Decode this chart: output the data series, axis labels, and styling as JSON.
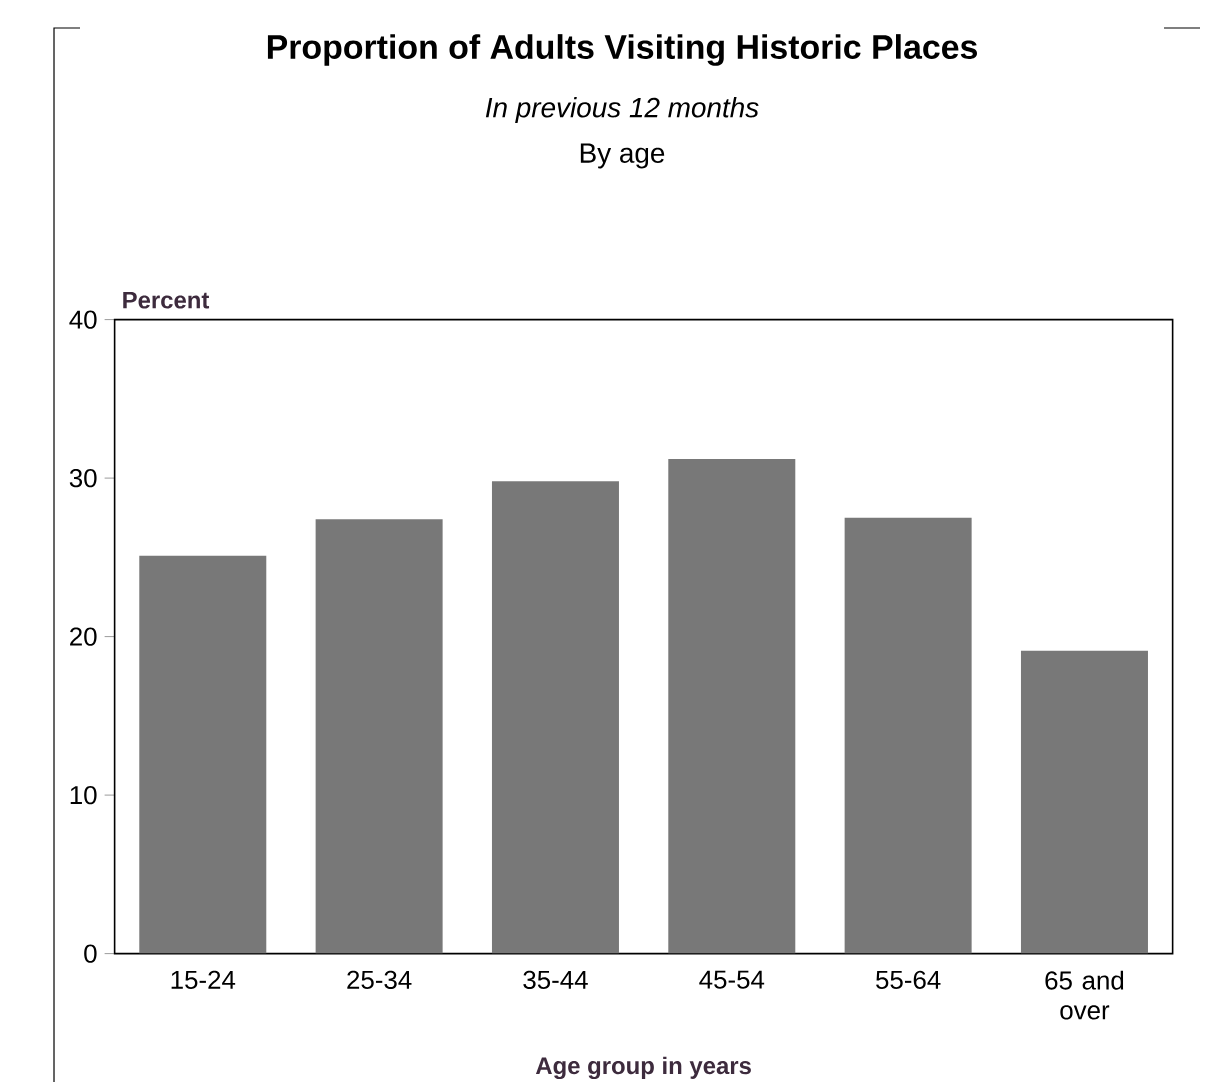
{
  "chart_data": {
    "type": "bar",
    "title": "Proportion of Adults Visiting Historic Places",
    "subtitle": "In previous 12 months",
    "annotations": [
      "By age"
    ],
    "ylabel": "Percent",
    "xlabel": "Age group in years",
    "categories": [
      "15-24",
      "25-34",
      "35-44",
      "45-54",
      "55-64",
      "65 and over"
    ],
    "values": [
      25.1,
      27.4,
      29.8,
      31.2,
      27.5,
      19.1
    ],
    "color": "#787878",
    "ylim": [
      0,
      40
    ],
    "yticks": [
      0,
      10,
      20,
      30,
      40
    ],
    "grid": false
  }
}
